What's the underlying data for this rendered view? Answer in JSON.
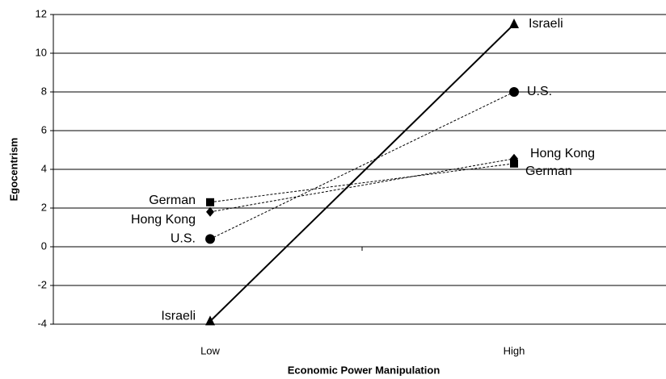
{
  "chart_data": {
    "type": "line",
    "x_label": "Economic Power Manipulation",
    "y_label": "Egocentrism",
    "categories": [
      "Low",
      "High"
    ],
    "series": [
      {
        "name": "Israeli",
        "color": "#000000",
        "style": "solid",
        "marker": "triangle",
        "values": [
          -3.85,
          11.5
        ]
      },
      {
        "name": "U.S.",
        "color": "#000000",
        "style": "dashed",
        "marker": "circle",
        "values": [
          0.4,
          8.0
        ]
      },
      {
        "name": "Hong Kong",
        "color": "#000000",
        "style": "dashed",
        "marker": "diamond",
        "values": [
          1.8,
          4.55
        ]
      },
      {
        "name": "German",
        "color": "#000000",
        "style": "dashed",
        "marker": "square",
        "values": [
          2.3,
          4.3
        ]
      }
    ],
    "ylim": [
      -4,
      12
    ],
    "yticks": [
      -4,
      -2,
      0,
      2,
      4,
      6,
      8,
      10,
      12
    ],
    "grid": true
  }
}
